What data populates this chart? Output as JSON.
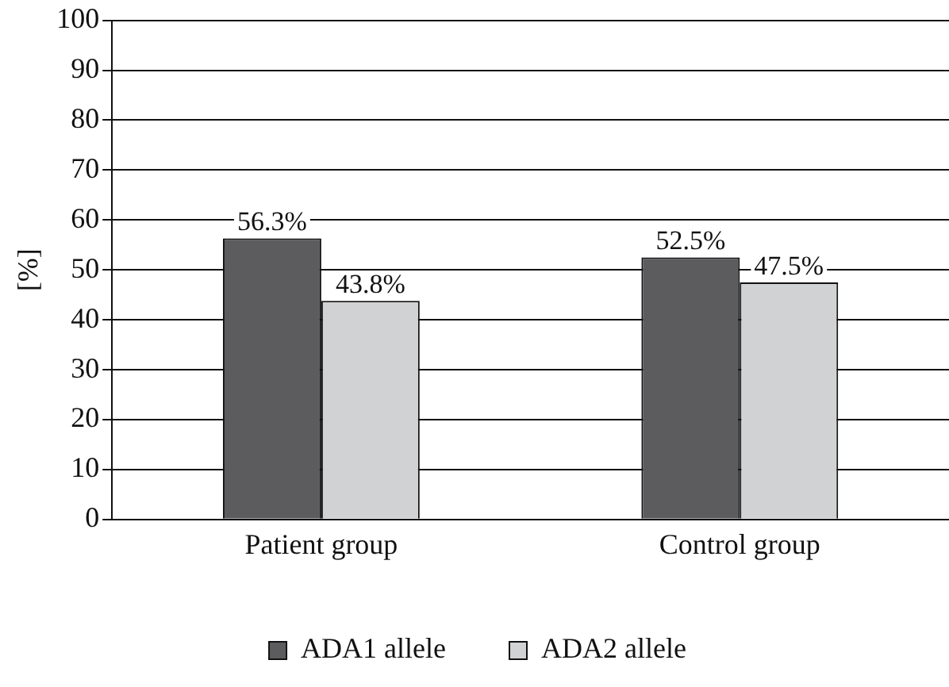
{
  "chart_data": {
    "type": "bar",
    "ylabel": "[%]",
    "categories": [
      "Patient group",
      "Control group"
    ],
    "series": [
      {
        "name": "ADA1 allele",
        "color": "#5c5c5e",
        "values": [
          56.3,
          52.5
        ],
        "value_labels": [
          "56.3%",
          "52.5%"
        ]
      },
      {
        "name": "ADA2 allele",
        "color": "#d1d2d4",
        "values": [
          43.8,
          47.5
        ],
        "value_labels": [
          "43.8%",
          "47.5%"
        ]
      }
    ],
    "ylim": [
      0,
      100
    ],
    "yticks": [
      0,
      10,
      20,
      30,
      40,
      50,
      60,
      70,
      80,
      90,
      100
    ],
    "grid": "y",
    "legend": "bottom"
  }
}
